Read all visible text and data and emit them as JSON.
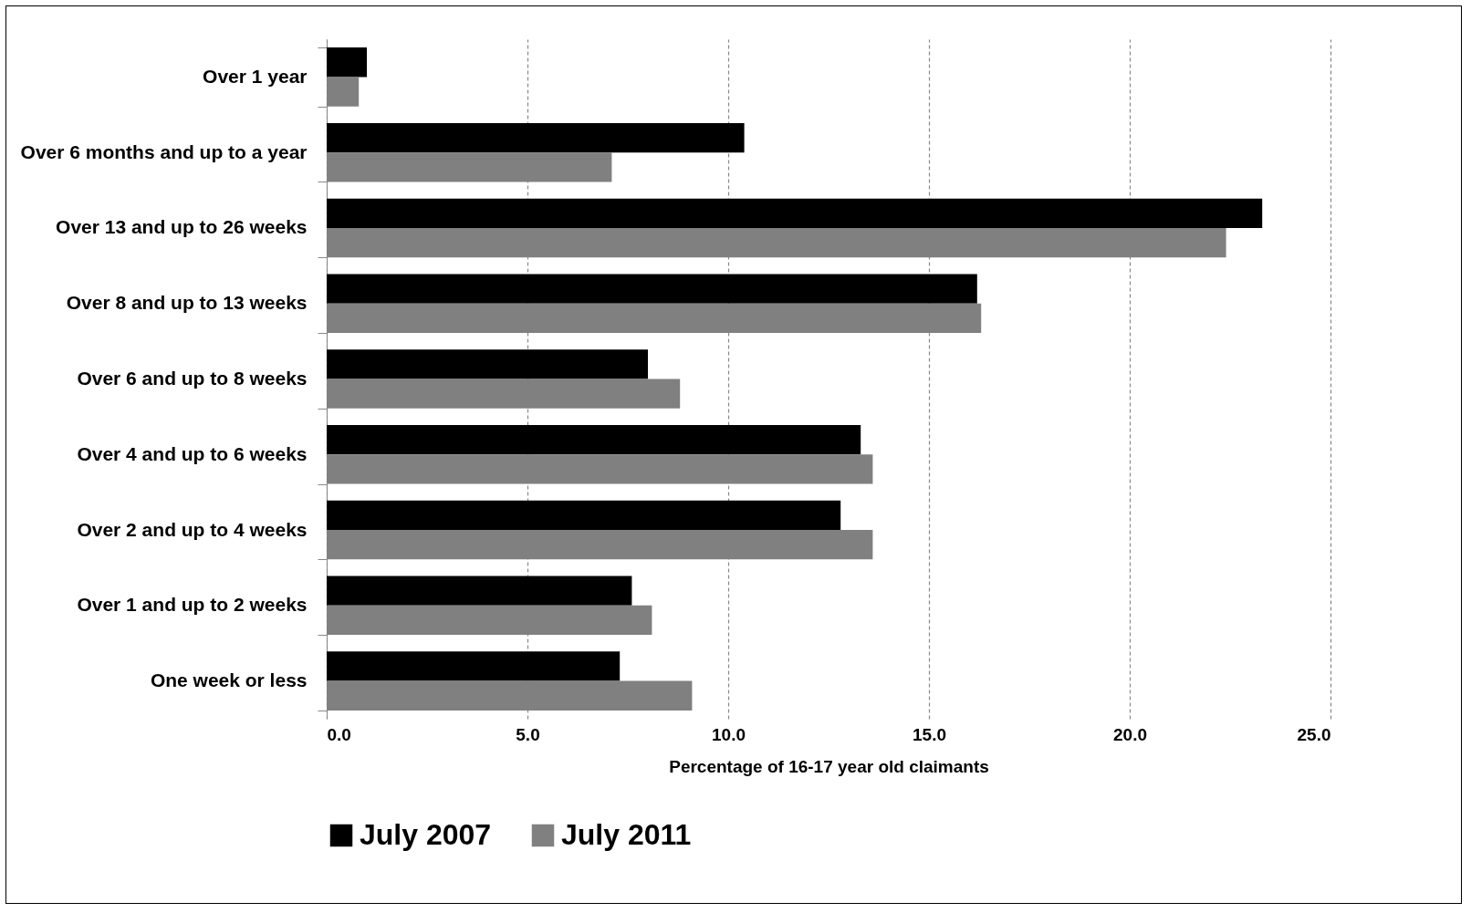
{
  "chart_data": {
    "type": "bar",
    "orientation": "horizontal",
    "xlabel": "Percentage of 16-17 year old claimants",
    "categories": [
      "Over 1 year",
      "Over 6 months and up to a year",
      "Over 13 and up to 26 weeks",
      "Over 8 and up to 13 weeks",
      "Over 6 and up to 8 weeks",
      "Over 4 and up to 6 weeks",
      "Over 2 and up to 4 weeks",
      "Over 1 and up to 2 weeks",
      "One week or less"
    ],
    "series": [
      {
        "name": "July 2007",
        "color": "#000000",
        "values": [
          1.0,
          10.4,
          23.3,
          16.2,
          8.0,
          13.3,
          12.8,
          7.6,
          7.3
        ]
      },
      {
        "name": "July 2011",
        "color": "#808080",
        "values": [
          0.8,
          7.1,
          22.4,
          16.3,
          8.8,
          13.6,
          13.6,
          8.1,
          9.1
        ]
      }
    ],
    "xlim": [
      0,
      25
    ],
    "xticks": [
      {
        "value": 0,
        "label": "0.0"
      },
      {
        "value": 5,
        "label": "5.0"
      },
      {
        "value": 10,
        "label": "10.0"
      },
      {
        "value": 15,
        "label": "15.0"
      },
      {
        "value": 20,
        "label": "20.0"
      },
      {
        "value": 25,
        "label": "25.0"
      }
    ],
    "grid": "x",
    "legend": "bottom"
  }
}
